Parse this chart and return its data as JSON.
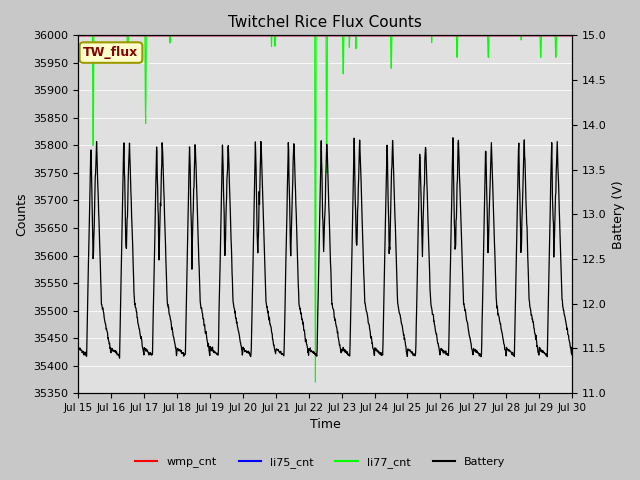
{
  "title": "Twitchel Rice Flux Counts",
  "xlabel": "Time",
  "ylabel_left": "Counts",
  "ylabel_right": "Battery (V)",
  "ylim_left": [
    35350,
    36000
  ],
  "ylim_right": [
    11.0,
    15.0
  ],
  "yticks_left": [
    35350,
    35400,
    35450,
    35500,
    35550,
    35600,
    35650,
    35700,
    35750,
    35800,
    35850,
    35900,
    35950,
    36000
  ],
  "yticks_right": [
    11.0,
    11.5,
    12.0,
    12.5,
    13.0,
    13.5,
    14.0,
    14.5,
    15.0
  ],
  "xtick_labels": [
    "Jul 15",
    "Jul 16",
    "Jul 17",
    "Jul 18",
    "Jul 19",
    "Jul 20",
    "Jul 21",
    "Jul 22",
    "Jul 23",
    "Jul 24",
    "Jul 25",
    "Jul 26",
    "Jul 27",
    "Jul 28",
    "Jul 29",
    "Jul 30"
  ],
  "fig_facecolor": "#c8c8c8",
  "ax_facecolor": "#e0e0e0",
  "annotation_text": "TW_flux",
  "annotation_facecolor": "#ffffcc",
  "annotation_edgecolor": "#999900",
  "annotation_textcolor": "#880000",
  "li77_color": "#00ff00",
  "battery_color": "#000000",
  "wmp_color": "#ff0000",
  "li75_color": "#0000ff",
  "legend_entries": [
    "wmp_cnt",
    "li75_cnt",
    "li77_cnt",
    "Battery"
  ],
  "n_days": 15,
  "pts_per_day": 96
}
